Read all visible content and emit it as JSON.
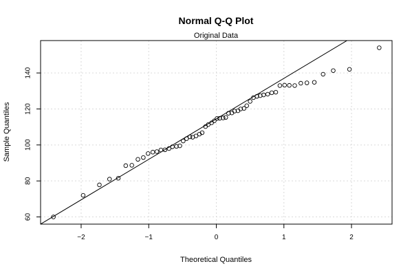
{
  "chart_data": {
    "type": "scatter",
    "title": "Normal Q-Q Plot",
    "subtitle": "Original Data",
    "xlabel": "Theoretical Quantiles",
    "ylabel": "Sample Quantiles",
    "xlim": [
      -2.6,
      2.6
    ],
    "ylim": [
      56,
      158
    ],
    "x_ticks": [
      -2,
      -1,
      0,
      1,
      2
    ],
    "x_tick_labels": [
      "−2",
      "−1",
      "0",
      "1",
      "2"
    ],
    "y_ticks": [
      60,
      80,
      100,
      120,
      140
    ],
    "y_tick_labels": [
      "60",
      "80",
      "100",
      "120",
      "140"
    ],
    "grid": true,
    "reference_line": {
      "intercept": 114.5,
      "slope": 22.5
    },
    "points": [
      [
        -2.41,
        60.0
      ],
      [
        -1.97,
        72.0
      ],
      [
        -1.73,
        77.8
      ],
      [
        -1.58,
        81.0
      ],
      [
        -1.45,
        81.5
      ],
      [
        -1.34,
        88.5
      ],
      [
        -1.25,
        88.7
      ],
      [
        -1.16,
        92.0
      ],
      [
        -1.08,
        93.0
      ],
      [
        -1.01,
        95.2
      ],
      [
        -0.94,
        96.0
      ],
      [
        -0.88,
        96.3
      ],
      [
        -0.82,
        97.2
      ],
      [
        -0.76,
        97.3
      ],
      [
        -0.7,
        98.0
      ],
      [
        -0.65,
        99.0
      ],
      [
        -0.59,
        99.2
      ],
      [
        -0.54,
        99.5
      ],
      [
        -0.49,
        102.2
      ],
      [
        -0.44,
        103.5
      ],
      [
        -0.39,
        104.5
      ],
      [
        -0.35,
        104.3
      ],
      [
        -0.3,
        105.0
      ],
      [
        -0.25,
        106.0
      ],
      [
        -0.21,
        106.8
      ],
      [
        -0.16,
        110.2
      ],
      [
        -0.12,
        111.3
      ],
      [
        -0.07,
        112.3
      ],
      [
        -0.03,
        113.4
      ],
      [
        0.01,
        114.7
      ],
      [
        0.05,
        114.8
      ],
      [
        0.1,
        115.0
      ],
      [
        0.14,
        115.3
      ],
      [
        0.18,
        117.6
      ],
      [
        0.23,
        117.8
      ],
      [
        0.27,
        118.8
      ],
      [
        0.32,
        119.0
      ],
      [
        0.36,
        120.0
      ],
      [
        0.41,
        120.3
      ],
      [
        0.45,
        121.8
      ],
      [
        0.5,
        124.2
      ],
      [
        0.55,
        126.3
      ],
      [
        0.6,
        127.0
      ],
      [
        0.65,
        127.4
      ],
      [
        0.7,
        127.8
      ],
      [
        0.76,
        128.2
      ],
      [
        0.82,
        129.0
      ],
      [
        0.88,
        129.3
      ],
      [
        0.94,
        133.0
      ],
      [
        1.01,
        133.2
      ],
      [
        1.08,
        133.1
      ],
      [
        1.16,
        133.0
      ],
      [
        1.25,
        134.3
      ],
      [
        1.34,
        134.5
      ],
      [
        1.45,
        134.8
      ],
      [
        1.58,
        139.3
      ],
      [
        1.73,
        141.3
      ],
      [
        1.97,
        142.0
      ],
      [
        2.41,
        154.0
      ]
    ]
  }
}
